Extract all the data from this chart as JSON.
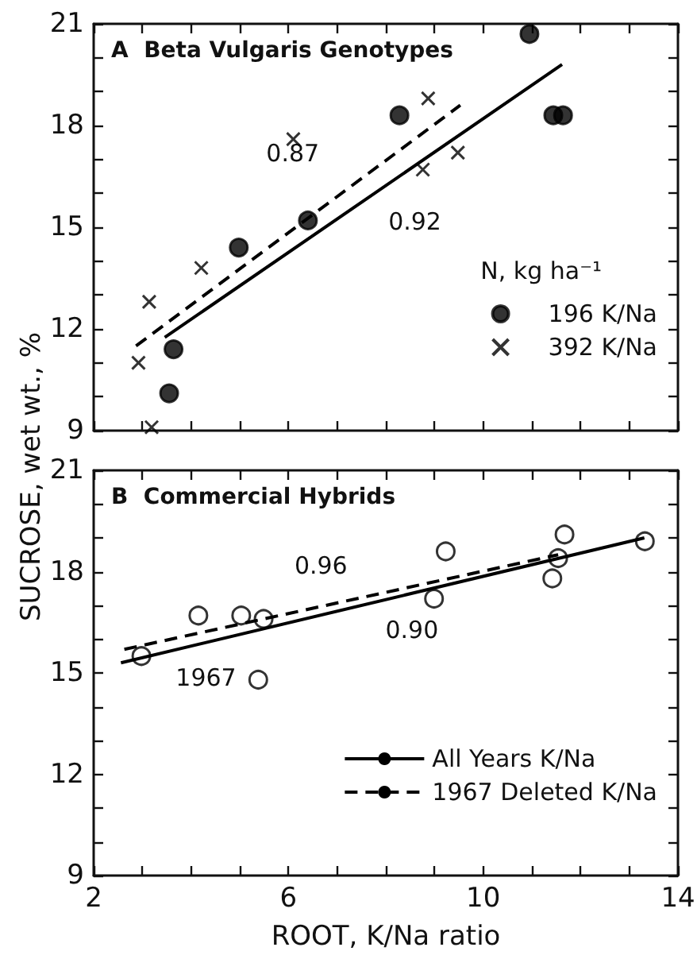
{
  "chart_data": [
    {
      "type": "scatter",
      "title": "A  Beta Vulgaris Genotypes",
      "ylabel": "SUCROSE, wet wt., %",
      "legend_title": "N, kg ha⁻¹",
      "legend": "right",
      "tick_labels": "y",
      "xlim": [
        2,
        14
      ],
      "ylim": [
        9,
        21
      ],
      "xticks": [
        2,
        {
          "value": 3,
          "label": null
        },
        {
          "value": 4,
          "label": null
        },
        {
          "value": 5,
          "label": null
        },
        6,
        {
          "value": 7,
          "label": null
        },
        {
          "value": 8,
          "label": null
        },
        {
          "value": 9,
          "label": null
        },
        10,
        {
          "value": 11,
          "label": null
        },
        {
          "value": 12,
          "label": null
        },
        {
          "value": 13,
          "label": null
        },
        14
      ],
      "yticks": [
        9,
        {
          "value": 10,
          "label": null
        },
        {
          "value": 11,
          "label": null
        },
        12,
        {
          "value": 13,
          "label": null
        },
        {
          "value": 14,
          "label": null
        },
        15,
        {
          "value": 16,
          "label": null
        },
        {
          "value": 17,
          "label": null
        },
        18,
        {
          "value": 19,
          "label": null
        },
        {
          "value": 20,
          "label": null
        },
        21
      ],
      "series": [
        {
          "name": "196 K/Na",
          "type": "scatter",
          "marker": "circle",
          "color": "#000000",
          "x": [
            10.95,
            8.28,
            11.44,
            11.64,
            6.4,
            4.98,
            3.64,
            3.55
          ],
          "values": [
            20.7,
            18.3,
            18.3,
            18.3,
            15.2,
            14.4,
            11.4,
            10.1
          ]
        },
        {
          "name": "392 K/Na",
          "type": "scatter",
          "marker": "cross",
          "color": "#000000",
          "x": [
            8.87,
            6.1,
            9.48,
            8.76,
            4.21,
            3.14,
            2.92,
            3.19
          ],
          "values": [
            18.8,
            17.6,
            17.2,
            16.7,
            13.8,
            12.8,
            11.0,
            9.1
          ]
        },
        {
          "type": "line",
          "marker": "none",
          "line_style": "solid",
          "color": "#000000",
          "x": [
            3.46,
            11.62
          ],
          "values": [
            11.75,
            19.8
          ]
        },
        {
          "type": "line",
          "marker": "none",
          "line_style": "dashed",
          "color": "#000000",
          "x": [
            2.87,
            9.53
          ],
          "values": [
            11.5,
            18.6
          ]
        }
      ],
      "annotations": [
        {
          "text": "0.87",
          "x": 7.5,
          "y": 16.4
        },
        {
          "text": "0.92",
          "x": 7.66,
          "y": 15.9
        }
      ]
    },
    {
      "type": "scatter",
      "title": "B  Commercial Hybrids",
      "xlabel": "ROOT, K/Na ratio",
      "legend": "bottom right",
      "xlim": [
        2,
        14
      ],
      "ylim": [
        9,
        21
      ],
      "xticks": [
        2,
        {
          "value": 3,
          "label": null
        },
        {
          "value": 4,
          "label": null
        },
        {
          "value": 5,
          "label": null
        },
        6,
        {
          "value": 7,
          "label": null
        },
        {
          "value": 8,
          "label": null
        },
        {
          "value": 9,
          "label": null
        },
        10,
        {
          "value": 11,
          "label": null
        },
        {
          "value": 12,
          "label": null
        },
        {
          "value": 13,
          "label": null
        },
        14
      ],
      "yticks": [
        9,
        {
          "value": 10,
          "label": null
        },
        {
          "value": 11,
          "label": null
        },
        12,
        {
          "value": 13,
          "label": null
        },
        {
          "value": 14,
          "label": null
        },
        15,
        {
          "value": 16,
          "label": null
        },
        {
          "value": 17,
          "label": null
        },
        18,
        {
          "value": 19,
          "label": null
        },
        {
          "value": 20,
          "label": null
        },
        21
      ],
      "series": [
        {
          "type": "scatter",
          "marker": "circle",
          "color": "#ffffff",
          "x": [
            2.98,
            4.15,
            5.03,
            5.49,
            5.38,
            8.99,
            9.23,
            11.42,
            11.54,
            11.67,
            13.32
          ],
          "values": [
            15.5,
            16.7,
            16.7,
            16.6,
            14.8,
            17.2,
            18.6,
            17.8,
            18.4,
            19.1,
            18.9
          ]
        },
        {
          "name": "All Years K/Na",
          "type": "line",
          "marker": "none",
          "line_style": "solid",
          "color": "#000000",
          "x": [
            2.56,
            13.31
          ],
          "values": [
            15.3,
            19.0
          ]
        },
        {
          "name": "1967 Deleted K/Na",
          "type": "line",
          "marker": "none",
          "line_style": "dashed",
          "color": "#000000",
          "x": [
            2.63,
            11.54
          ],
          "values": [
            15.7,
            18.5
          ]
        }
      ],
      "annotations": [
        {
          "text": "0.96",
          "x": 8.08,
          "y": 17.4
        },
        {
          "text": "0.90",
          "x": 7.6,
          "y": 17.0
        },
        {
          "text": "1967",
          "x": 5.38,
          "y": 14.8
        }
      ]
    }
  ]
}
